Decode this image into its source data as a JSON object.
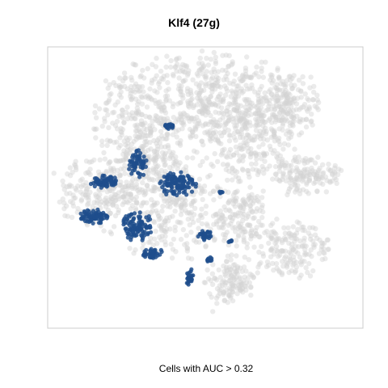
{
  "chart_data": {
    "type": "scatter",
    "title": "Klf4 (27g)",
    "xlabel": "Cells with AUC > 0.32",
    "ylabel": "",
    "grid": false,
    "legend": "none",
    "colors": {
      "background_points": "#d3d3d3",
      "highlight_points": "#1f4e8c",
      "highlight_edge": "#2f6fb5",
      "panel_border": "#cccccc"
    },
    "xlim": [
      0,
      390
    ],
    "ylim": [
      0,
      348
    ],
    "series": [
      {
        "values_kind": "clusters",
        "clusters": [
          {
            "cx": 115,
            "cy": 105,
            "rx": 55,
            "ry": 90,
            "n": 420
          },
          {
            "cx": 195,
            "cy": 65,
            "rx": 60,
            "ry": 60,
            "n": 320
          },
          {
            "cx": 255,
            "cy": 95,
            "rx": 55,
            "ry": 75,
            "n": 380
          },
          {
            "cx": 300,
            "cy": 70,
            "rx": 35,
            "ry": 40,
            "n": 140
          },
          {
            "cx": 150,
            "cy": 190,
            "rx": 80,
            "ry": 70,
            "n": 360
          },
          {
            "cx": 60,
            "cy": 180,
            "rx": 45,
            "ry": 45,
            "n": 180
          },
          {
            "cx": 320,
            "cy": 160,
            "rx": 45,
            "ry": 25,
            "n": 140
          },
          {
            "cx": 300,
            "cy": 250,
            "rx": 45,
            "ry": 35,
            "n": 170
          },
          {
            "cx": 225,
            "cy": 290,
            "rx": 30,
            "ry": 30,
            "n": 130
          },
          {
            "cx": 240,
            "cy": 210,
            "rx": 30,
            "ry": 40,
            "n": 130
          }
        ]
      },
      {
        "values_kind": "clusters",
        "clusters": [
          {
            "cx": 150,
            "cy": 98,
            "rx": 6,
            "ry": 3,
            "n": 30
          },
          {
            "cx": 112,
            "cy": 145,
            "rx": 12,
            "ry": 16,
            "n": 60
          },
          {
            "cx": 160,
            "cy": 170,
            "rx": 22,
            "ry": 14,
            "n": 110
          },
          {
            "cx": 70,
            "cy": 167,
            "rx": 16,
            "ry": 8,
            "n": 70
          },
          {
            "cx": 58,
            "cy": 210,
            "rx": 18,
            "ry": 8,
            "n": 70
          },
          {
            "cx": 112,
            "cy": 222,
            "rx": 18,
            "ry": 18,
            "n": 100
          },
          {
            "cx": 130,
            "cy": 255,
            "rx": 14,
            "ry": 6,
            "n": 40
          },
          {
            "cx": 195,
            "cy": 232,
            "rx": 10,
            "ry": 6,
            "n": 30
          },
          {
            "cx": 175,
            "cy": 285,
            "rx": 6,
            "ry": 10,
            "n": 25
          },
          {
            "cx": 200,
            "cy": 262,
            "rx": 6,
            "ry": 4,
            "n": 10
          },
          {
            "cx": 215,
            "cy": 180,
            "rx": 3,
            "ry": 3,
            "n": 6
          },
          {
            "cx": 225,
            "cy": 240,
            "rx": 3,
            "ry": 3,
            "n": 6
          }
        ]
      }
    ]
  }
}
